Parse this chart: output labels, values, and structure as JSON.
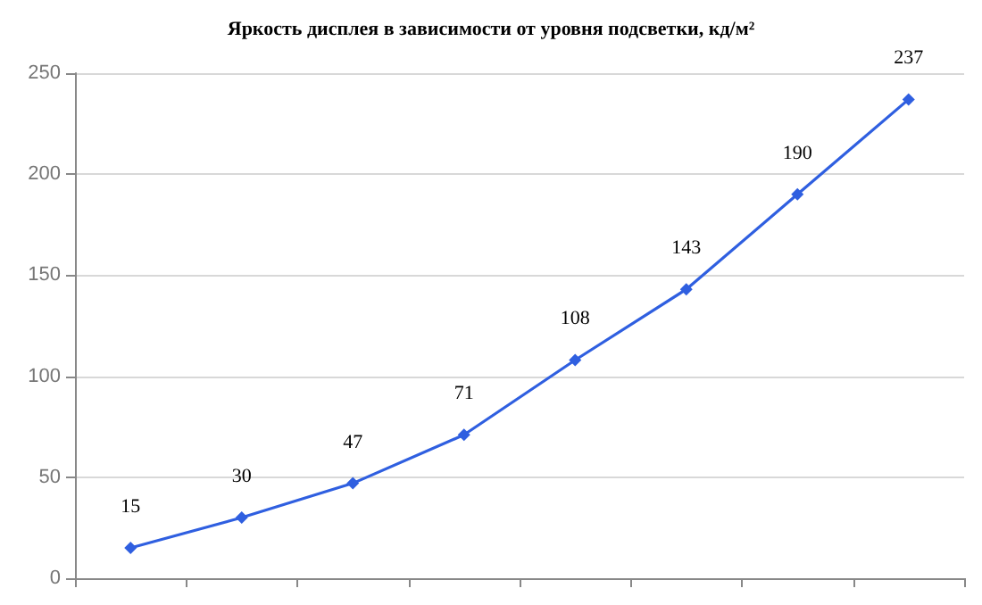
{
  "chart_data": {
    "type": "line",
    "title": "Яркость дисплея в зависимости от уровня подсветки, кд/м²",
    "categories": [
      null,
      null,
      null,
      null,
      null,
      null,
      null,
      null
    ],
    "series": [
      {
        "color": "#2f5fe0",
        "values": [
          15,
          30,
          47,
          71,
          108,
          143,
          190,
          237
        ]
      }
    ],
    "ylim": [
      0,
      250
    ],
    "yticks": [
      0,
      50,
      100,
      150,
      200,
      250
    ],
    "grid": "y",
    "marker": "diamond",
    "line_style": "solid",
    "data_labels": true
  }
}
